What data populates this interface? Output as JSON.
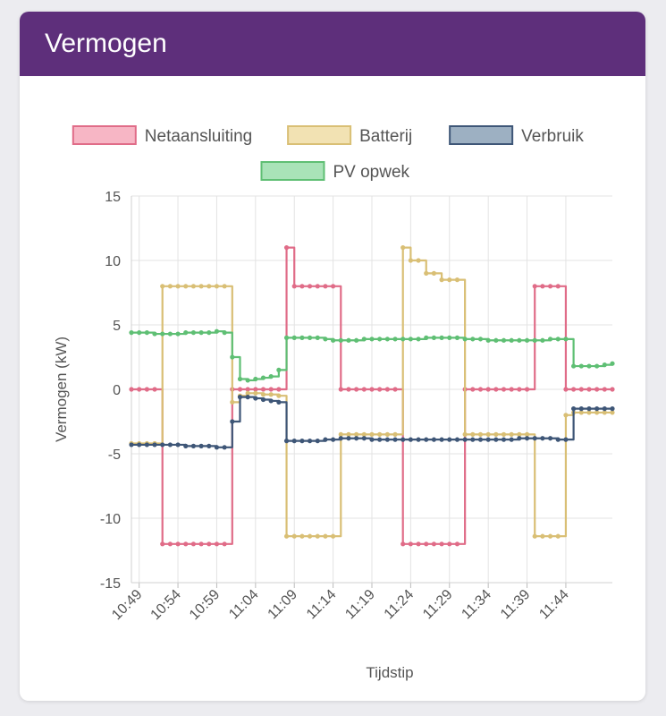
{
  "card": {
    "title": "Vermogen"
  },
  "chart_data": {
    "type": "line",
    "title": "",
    "xlabel": "Tijdstip",
    "ylabel": "Vermogen (kW)",
    "ylim": [
      -15,
      15
    ],
    "xlim": [
      "10:48",
      "11:50"
    ],
    "grid": true,
    "legend_position": "top",
    "y_ticks": [
      "15",
      "10",
      "5",
      "0",
      "-5",
      "-10",
      "-15"
    ],
    "x_ticks": [
      "10:49",
      "10:54",
      "10:59",
      "11:04",
      "11:09",
      "11:14",
      "11:19",
      "11:24",
      "11:29",
      "11:34",
      "11:39",
      "11:44"
    ],
    "series": [
      {
        "name": "Netaansluiting",
        "color": "#e06c88",
        "fill": "#f7b6c5",
        "x": [
          "10:48",
          "10:49",
          "10:50",
          "10:51",
          "10:52",
          "10:53",
          "10:54",
          "10:55",
          "10:56",
          "10:57",
          "10:58",
          "10:59",
          "11:00",
          "11:01",
          "11:02",
          "11:03",
          "11:04",
          "11:05",
          "11:06",
          "11:07",
          "11:08",
          "11:09",
          "11:10",
          "11:11",
          "11:12",
          "11:13",
          "11:14",
          "11:15",
          "11:16",
          "11:17",
          "11:18",
          "11:19",
          "11:20",
          "11:21",
          "11:22",
          "11:23",
          "11:24",
          "11:25",
          "11:26",
          "11:27",
          "11:28",
          "11:29",
          "11:30",
          "11:31",
          "11:32",
          "11:33",
          "11:34",
          "11:35",
          "11:36",
          "11:37",
          "11:38",
          "11:39",
          "11:40",
          "11:41",
          "11:42",
          "11:43",
          "11:44",
          "11:45",
          "11:46",
          "11:47",
          "11:48",
          "11:49",
          "11:50"
        ],
        "values": [
          0,
          0,
          0,
          0,
          -12,
          -12,
          -12,
          -12,
          -12,
          -12,
          -12,
          -12,
          -12,
          0,
          0,
          0,
          0,
          0,
          0,
          0,
          11,
          8,
          8,
          8,
          8,
          8,
          8,
          0,
          0,
          0,
          0,
          0,
          0,
          0,
          0,
          -12,
          -12,
          -12,
          -12,
          -12,
          -12,
          -12,
          -12,
          0,
          0,
          0,
          0,
          0,
          0,
          0,
          0,
          0,
          8,
          8,
          8,
          8,
          0,
          0,
          0,
          0,
          0,
          0,
          0
        ]
      },
      {
        "name": "Batterij",
        "color": "#d9bf75",
        "fill": "#f2e2b3",
        "x": [
          "10:48",
          "10:49",
          "10:50",
          "10:51",
          "10:52",
          "10:53",
          "10:54",
          "10:55",
          "10:56",
          "10:57",
          "10:58",
          "10:59",
          "11:00",
          "11:01",
          "11:02",
          "11:03",
          "11:04",
          "11:05",
          "11:06",
          "11:07",
          "11:08",
          "11:09",
          "11:10",
          "11:11",
          "11:12",
          "11:13",
          "11:14",
          "11:15",
          "11:16",
          "11:17",
          "11:18",
          "11:19",
          "11:20",
          "11:21",
          "11:22",
          "11:23",
          "11:24",
          "11:25",
          "11:26",
          "11:27",
          "11:28",
          "11:29",
          "11:30",
          "11:31",
          "11:32",
          "11:33",
          "11:34",
          "11:35",
          "11:36",
          "11:37",
          "11:38",
          "11:39",
          "11:40",
          "11:41",
          "11:42",
          "11:43",
          "11:44",
          "11:45",
          "11:46",
          "11:47",
          "11:48",
          "11:49",
          "11:50"
        ],
        "values": [
          -4.2,
          -4.2,
          -4.2,
          -4.2,
          8,
          8,
          8,
          8,
          8,
          8,
          8,
          8,
          8,
          -1,
          -0.5,
          -0.3,
          -0.3,
          -0.4,
          -0.4,
          -0.5,
          -11.4,
          -11.4,
          -11.4,
          -11.4,
          -11.4,
          -11.4,
          -11.4,
          -3.5,
          -3.5,
          -3.5,
          -3.5,
          -3.5,
          -3.5,
          -3.5,
          -3.5,
          11,
          10,
          10,
          9,
          9,
          8.5,
          8.5,
          8.5,
          -3.5,
          -3.5,
          -3.5,
          -3.5,
          -3.5,
          -3.5,
          -3.5,
          -3.5,
          -3.5,
          -11.4,
          -11.4,
          -11.4,
          -11.4,
          -2,
          -1.8,
          -1.8,
          -1.8,
          -1.8,
          -1.8,
          -1.8
        ]
      },
      {
        "name": "Verbruik",
        "color": "#3e5677",
        "fill": "#9db0c2",
        "x": [
          "10:48",
          "10:49",
          "10:50",
          "10:51",
          "10:52",
          "10:53",
          "10:54",
          "10:55",
          "10:56",
          "10:57",
          "10:58",
          "10:59",
          "11:00",
          "11:01",
          "11:02",
          "11:03",
          "11:04",
          "11:05",
          "11:06",
          "11:07",
          "11:08",
          "11:09",
          "11:10",
          "11:11",
          "11:12",
          "11:13",
          "11:14",
          "11:15",
          "11:16",
          "11:17",
          "11:18",
          "11:19",
          "11:20",
          "11:21",
          "11:22",
          "11:23",
          "11:24",
          "11:25",
          "11:26",
          "11:27",
          "11:28",
          "11:29",
          "11:30",
          "11:31",
          "11:32",
          "11:33",
          "11:34",
          "11:35",
          "11:36",
          "11:37",
          "11:38",
          "11:39",
          "11:40",
          "11:41",
          "11:42",
          "11:43",
          "11:44",
          "11:45",
          "11:46",
          "11:47",
          "11:48",
          "11:49",
          "11:50"
        ],
        "values": [
          -4.3,
          -4.3,
          -4.3,
          -4.3,
          -4.3,
          -4.3,
          -4.3,
          -4.4,
          -4.4,
          -4.4,
          -4.4,
          -4.5,
          -4.5,
          -2.5,
          -0.6,
          -0.6,
          -0.7,
          -0.8,
          -0.9,
          -1,
          -4,
          -4,
          -4,
          -4,
          -4,
          -3.9,
          -3.9,
          -3.8,
          -3.8,
          -3.8,
          -3.8,
          -3.9,
          -3.9,
          -3.9,
          -3.9,
          -3.9,
          -3.9,
          -3.9,
          -3.9,
          -3.9,
          -3.9,
          -3.9,
          -3.9,
          -3.9,
          -3.9,
          -3.9,
          -3.9,
          -3.9,
          -3.9,
          -3.9,
          -3.8,
          -3.8,
          -3.8,
          -3.8,
          -3.8,
          -3.9,
          -3.9,
          -1.5,
          -1.5,
          -1.5,
          -1.5,
          -1.5,
          -1.5
        ]
      },
      {
        "name": "PV opwek",
        "color": "#5fbf74",
        "fill": "#a9e3b8",
        "x": [
          "10:48",
          "10:49",
          "10:50",
          "10:51",
          "10:52",
          "10:53",
          "10:54",
          "10:55",
          "10:56",
          "10:57",
          "10:58",
          "10:59",
          "11:00",
          "11:01",
          "11:02",
          "11:03",
          "11:04",
          "11:05",
          "11:06",
          "11:07",
          "11:08",
          "11:09",
          "11:10",
          "11:11",
          "11:12",
          "11:13",
          "11:14",
          "11:15",
          "11:16",
          "11:17",
          "11:18",
          "11:19",
          "11:20",
          "11:21",
          "11:22",
          "11:23",
          "11:24",
          "11:25",
          "11:26",
          "11:27",
          "11:28",
          "11:29",
          "11:30",
          "11:31",
          "11:32",
          "11:33",
          "11:34",
          "11:35",
          "11:36",
          "11:37",
          "11:38",
          "11:39",
          "11:40",
          "11:41",
          "11:42",
          "11:43",
          "11:44",
          "11:45",
          "11:46",
          "11:47",
          "11:48",
          "11:49",
          "11:50"
        ],
        "values": [
          4.4,
          4.4,
          4.4,
          4.3,
          4.3,
          4.3,
          4.3,
          4.4,
          4.4,
          4.4,
          4.4,
          4.5,
          4.4,
          2.5,
          0.8,
          0.7,
          0.8,
          0.9,
          1,
          1.5,
          4,
          4,
          4,
          4,
          4,
          3.9,
          3.8,
          3.8,
          3.8,
          3.8,
          3.9,
          3.9,
          3.9,
          3.9,
          3.9,
          3.9,
          3.9,
          3.9,
          4,
          4,
          4,
          4,
          4,
          3.9,
          3.9,
          3.9,
          3.8,
          3.8,
          3.8,
          3.8,
          3.8,
          3.8,
          3.8,
          3.8,
          3.9,
          3.9,
          3.9,
          1.8,
          1.8,
          1.8,
          1.8,
          1.9,
          2
        ]
      }
    ]
  }
}
